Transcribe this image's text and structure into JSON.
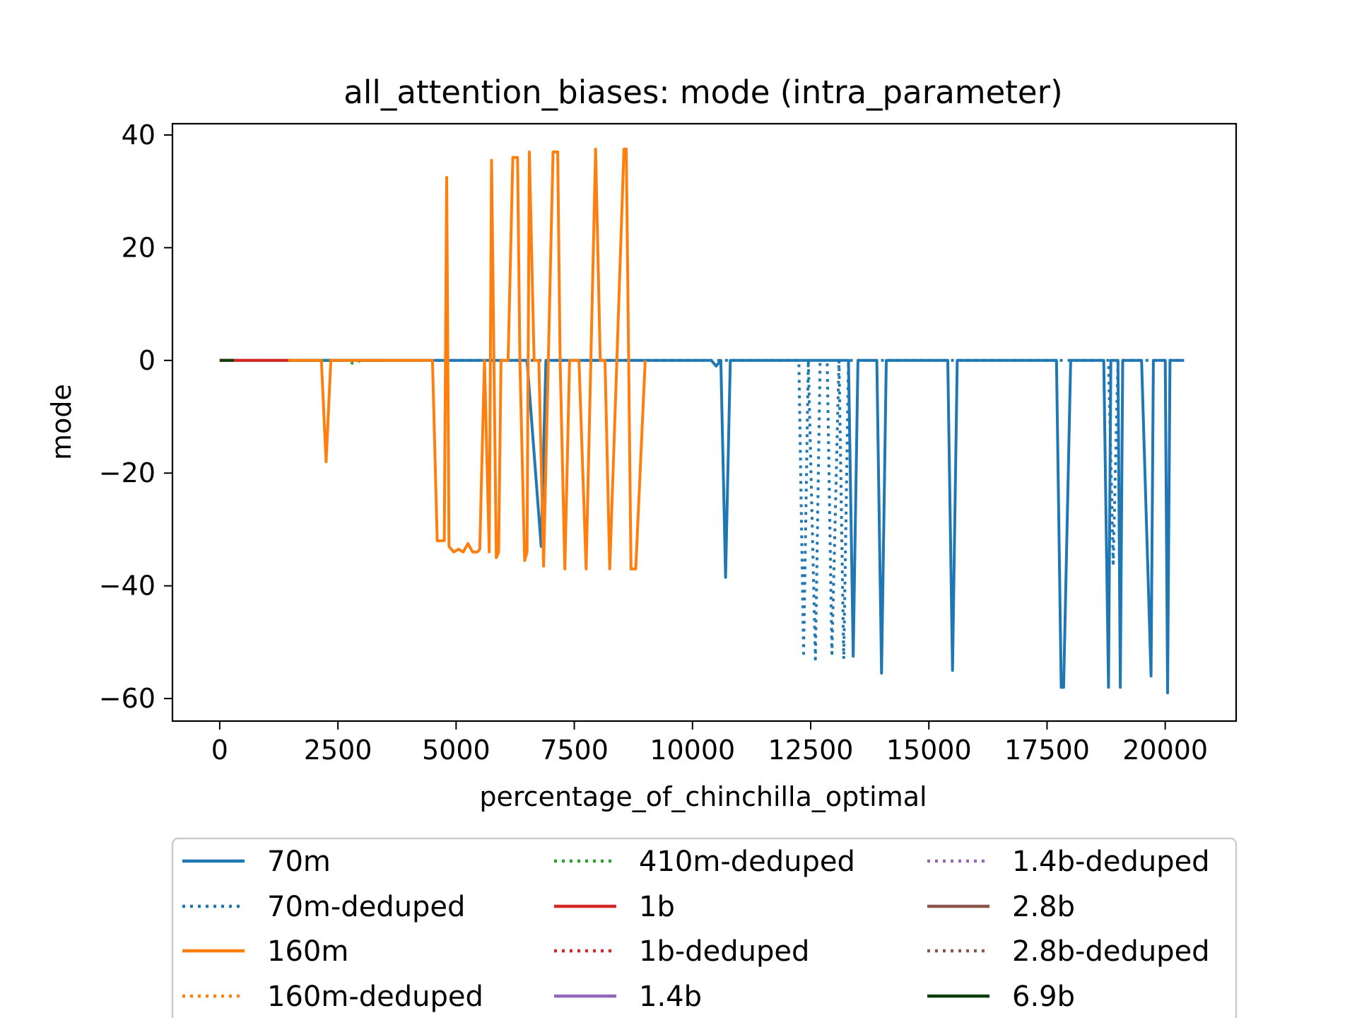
{
  "chart_data": {
    "type": "line",
    "title": "all_attention_biases: mode (intra_parameter)",
    "xlabel": "percentage_of_chinchilla_optimal",
    "ylabel": "mode",
    "xlim": [
      -1000,
      21500
    ],
    "ylim": [
      -64,
      42
    ],
    "x_ticks": [
      0,
      2500,
      5000,
      7500,
      10000,
      12500,
      15000,
      17500,
      20000
    ],
    "x_tick_labels": [
      "0",
      "2500",
      "5000",
      "7500",
      "10000",
      "12500",
      "15000",
      "17500",
      "20000"
    ],
    "y_ticks": [
      -60,
      -40,
      -20,
      0,
      20,
      40
    ],
    "y_tick_labels": [
      "−60",
      "−40",
      "−20",
      "0",
      "20",
      "40"
    ],
    "grid": false,
    "legend_position": "below",
    "legend_columns": 3,
    "series": [
      {
        "name": "70m",
        "color": "#1f77b4",
        "style": "solid",
        "x": [
          0,
          1000,
          2000,
          3000,
          4000,
          5000,
          6000,
          6500,
          6800,
          6900,
          7000,
          8000,
          9000,
          10000,
          10400,
          10500,
          10600,
          10700,
          10800,
          11500,
          12000,
          13000,
          13300,
          13400,
          13500,
          13700,
          13900,
          14000,
          14100,
          14500,
          15400,
          15500,
          15600,
          16000,
          17000,
          17700,
          17800,
          17850,
          18000,
          18200,
          18700,
          18800,
          18850,
          19000,
          19050,
          19100,
          19200,
          19500,
          19700,
          19750,
          19800,
          20000,
          20050,
          20100,
          20200,
          20400
        ],
        "y": [
          0,
          0,
          0,
          0,
          0,
          0,
          0,
          0,
          -33,
          0,
          0,
          0,
          0,
          0,
          0,
          -1,
          0,
          -38.5,
          0,
          0,
          0,
          0,
          0,
          -52.5,
          0,
          0,
          0,
          -55.5,
          0,
          0,
          0,
          -55,
          0,
          0,
          0,
          0,
          -58,
          -58,
          0,
          0,
          0,
          -58,
          0,
          0,
          -58,
          0,
          0,
          0,
          -56,
          0,
          0,
          0,
          -59,
          0,
          0,
          0
        ]
      },
      {
        "name": "70m-deduped",
        "color": "#1f77b4",
        "style": "dotted",
        "x": [
          0,
          3000,
          6000,
          9000,
          12000,
          12250,
          12350,
          12450,
          12600,
          12700,
          12850,
          12950,
          13100,
          13200,
          13300,
          14000,
          16000,
          18000,
          18800,
          18900,
          19000,
          20000,
          20400
        ],
        "y": [
          0,
          0,
          0,
          0,
          0,
          0,
          -52,
          0,
          -53,
          0,
          0,
          -52,
          0,
          -53,
          0,
          0,
          0,
          0,
          0,
          -36,
          0,
          0,
          0
        ]
      },
      {
        "name": "160m",
        "color": "#ff7f0e",
        "style": "solid",
        "x": [
          0,
          1000,
          2000,
          2150,
          2250,
          2350,
          2500,
          3500,
          4400,
          4500,
          4600,
          4750,
          4800,
          4850,
          4950,
          5050,
          5150,
          5250,
          5350,
          5450,
          5500,
          5600,
          5700,
          5750,
          5850,
          5900,
          5950,
          6000,
          6100,
          6200,
          6300,
          6350,
          6450,
          6500,
          6550,
          6650,
          6750,
          6850,
          6950,
          7050,
          7150,
          7200,
          7300,
          7400,
          7500,
          7600,
          7750,
          7850,
          7950,
          8050,
          8150,
          8250,
          8400,
          8550,
          8600,
          8700,
          8800,
          9000
        ],
        "y": [
          0,
          0,
          0,
          0,
          -18,
          0,
          0,
          0,
          0,
          0,
          -32,
          -32,
          32.5,
          -33,
          -34,
          -33.5,
          -34,
          -32.5,
          -34,
          -34,
          -33.5,
          0,
          -34,
          35.5,
          -35,
          -34,
          0,
          0,
          0,
          36,
          36,
          0,
          -35.5,
          -34,
          37,
          0,
          0,
          -36.5,
          0,
          37,
          37,
          0,
          -37,
          0,
          0,
          0,
          -37,
          0,
          37.5,
          0,
          0,
          -37,
          0,
          37.5,
          37.5,
          -37,
          -37,
          0
        ]
      },
      {
        "name": "160m-deduped",
        "color": "#ff7f0e",
        "style": "dotted",
        "x": [],
        "y": []
      },
      {
        "name": "410m-deduped",
        "color": "#2ca02c",
        "style": "dotted",
        "x": [
          0,
          500,
          1000,
          1500,
          2000,
          2500,
          2750,
          2800,
          3000,
          3500
        ],
        "y": [
          0,
          0,
          0,
          0,
          0,
          0,
          0,
          -0.5,
          0,
          0
        ]
      },
      {
        "name": "1b",
        "color": "#d62728",
        "style": "solid",
        "x": [
          0,
          300,
          600,
          900,
          1200,
          1450
        ],
        "y": [
          0,
          0,
          0,
          0,
          0,
          0
        ]
      },
      {
        "name": "1b-deduped",
        "color": "#d62728",
        "style": "dotted",
        "x": [],
        "y": []
      },
      {
        "name": "1.4b",
        "color": "#9467bd",
        "style": "solid",
        "x": [],
        "y": []
      },
      {
        "name": "1.4b-deduped",
        "color": "#9467bd",
        "style": "dotted",
        "x": [],
        "y": []
      },
      {
        "name": "2.8b",
        "color": "#8c564b",
        "style": "solid",
        "x": [],
        "y": []
      },
      {
        "name": "2.8b-deduped",
        "color": "#8c564b",
        "style": "dotted",
        "x": [],
        "y": []
      },
      {
        "name": "6.9b",
        "color": "#0b3d0b",
        "style": "solid",
        "x": [
          0,
          100,
          200,
          300
        ],
        "y": [
          0,
          0,
          0,
          0
        ]
      }
    ],
    "extra_segments": [
      {
        "color": "#2ca02c",
        "style": "solid",
        "x": [
          1450,
          2000,
          2500,
          3000,
          3500
        ],
        "y": [
          0,
          0,
          0,
          0,
          0
        ]
      }
    ]
  }
}
